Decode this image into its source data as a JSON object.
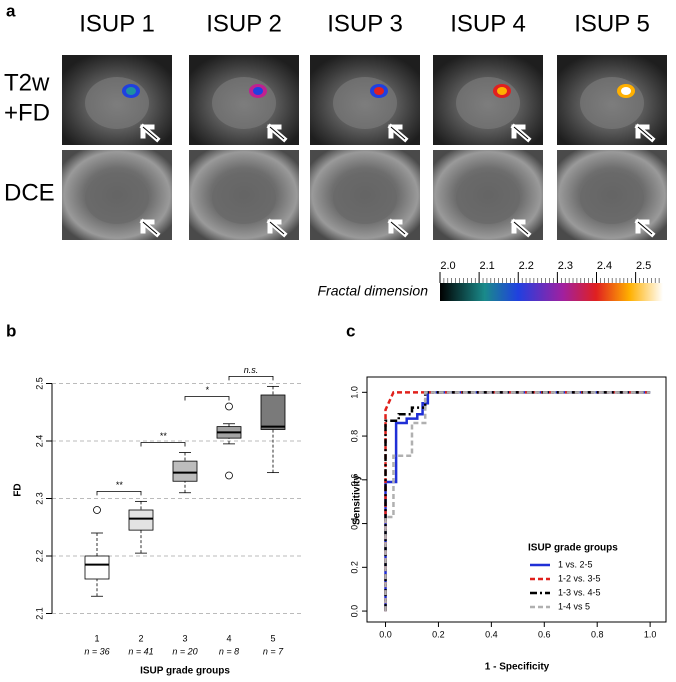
{
  "panel_a": {
    "label": "a",
    "columns": [
      "ISUP 1",
      "ISUP 2",
      "ISUP 3",
      "ISUP 4",
      "ISUP 5"
    ],
    "rows": [
      [
        "T2w",
        "+FD"
      ],
      [
        "DCE"
      ]
    ],
    "colorbar": {
      "label": "Fractal dimension",
      "lim": [
        2.0,
        2.57
      ],
      "ticks": [
        {
          "value": 2,
          "label": "2.0"
        },
        2.1,
        2.2,
        2.3,
        2.4,
        2.5
      ]
    }
  },
  "chart_data": [
    {
      "type": "box",
      "panel_label": "b",
      "x_label": "ISUP grade groups",
      "y_label": "FD",
      "categories": [
        "1",
        "2",
        "3",
        "4",
        "5"
      ],
      "n_labels": [
        "n = 36",
        "n = 41",
        "n = 20",
        "n = 8",
        "n = 7"
      ],
      "boxes": [
        {
          "low": 2.13,
          "q1": 2.16,
          "median": 2.185,
          "q3": 2.2,
          "high": 2.24,
          "outliers": [
            2.28
          ],
          "color": "#ffffff"
        },
        {
          "low": 2.205,
          "q1": 2.245,
          "median": 2.265,
          "q3": 2.28,
          "high": 2.295,
          "outliers": [],
          "color": "#e3e3e3"
        },
        {
          "low": 2.31,
          "q1": 2.33,
          "median": 2.345,
          "q3": 2.365,
          "high": 2.38,
          "outliers": [],
          "color": "#bdbdbd"
        },
        {
          "low": 2.395,
          "q1": 2.405,
          "median": 2.415,
          "q3": 2.425,
          "high": 2.43,
          "outliers": [
            2.46,
            2.34
          ],
          "color": "#a3a3a3"
        },
        {
          "low": 2.345,
          "q1": 2.42,
          "median": 2.425,
          "q3": 2.48,
          "high": 2.495,
          "outliers": [],
          "color": "#7a7a7a"
        }
      ],
      "annotations": [
        "**",
        "**",
        "*",
        "n.s."
      ],
      "ylim": [
        2.08,
        2.52
      ],
      "yticks": [
        2.1,
        2.2,
        2.3,
        2.4,
        2.5
      ],
      "grid": true
    },
    {
      "type": "line",
      "panel_label": "c",
      "x_label": "1 - Specificity",
      "y_label": "Sensitivity",
      "legend_title": "ISUP grade groups",
      "legend": "lower right",
      "series": [
        {
          "name": "1 vs. 2-5",
          "color": "#1f2fd6",
          "dash": "solid",
          "x": [
            0,
            0,
            0.04,
            0.04,
            0.08,
            0.08,
            0.12,
            0.12,
            0.14,
            0.14,
            0.16,
            0.16,
            1
          ],
          "values": [
            0,
            0.59,
            0.59,
            0.86,
            0.86,
            0.88,
            0.88,
            0.9,
            0.9,
            0.95,
            0.95,
            1,
            1
          ]
        },
        {
          "name": "1-2 vs. 3-5",
          "color": "#e0201b",
          "dash": "dashed",
          "x": [
            0,
            0,
            0.03,
            1
          ],
          "values": [
            0,
            0.92,
            1,
            1
          ]
        },
        {
          "name": "1-3 vs. 4-5",
          "color": "#000000",
          "dash": "dashdot",
          "x": [
            0,
            0,
            0.05,
            0.05,
            0.1,
            0.1,
            0.15,
            0.15,
            1
          ],
          "values": [
            0,
            0.87,
            0.87,
            0.9,
            0.9,
            0.93,
            0.93,
            1,
            1
          ]
        },
        {
          "name": "1-4 vs 5",
          "color": "#b0b0b0",
          "dash": "dashed",
          "x": [
            0,
            0,
            0.03,
            0.03,
            0.1,
            0.1,
            0.15,
            0.15,
            1
          ],
          "values": [
            0,
            0.43,
            0.43,
            0.71,
            0.71,
            0.86,
            0.86,
            1,
            1
          ]
        }
      ],
      "xlim": [
        -0.07,
        1.06
      ],
      "ylim": [
        -0.05,
        1.07
      ],
      "xticks": [
        {
          "value": 0,
          "label": "0.0"
        },
        0.2,
        0.4,
        0.6,
        0.8,
        {
          "value": 1,
          "label": "1.0"
        }
      ],
      "yticks": [
        {
          "value": 0,
          "label": "0.0"
        },
        0.2,
        0.4,
        0.6,
        0.8,
        {
          "value": 1,
          "label": "1.0"
        }
      ]
    }
  ]
}
